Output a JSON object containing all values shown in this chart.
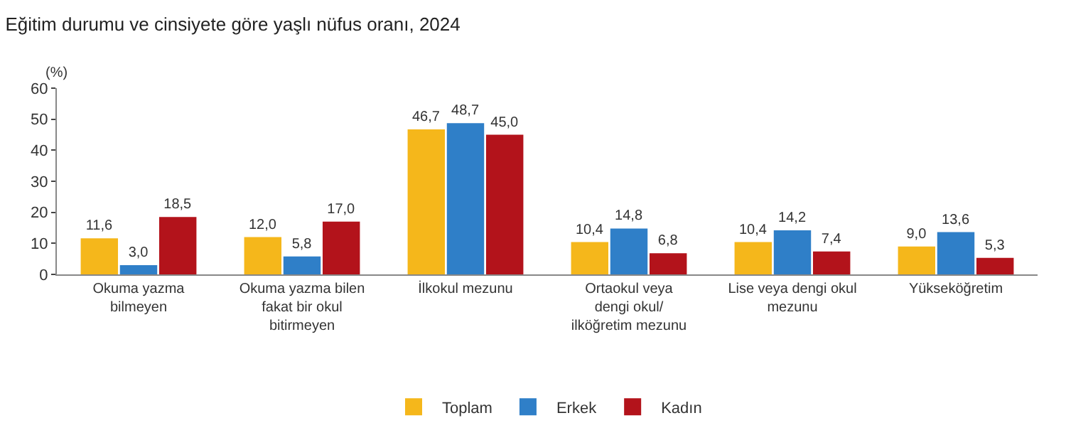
{
  "chart_data": {
    "type": "bar",
    "title": "Eğitim durumu ve cinsiyete göre yaşlı nüfus oranı, 2024",
    "ylabel": "(%)",
    "categories": [
      "Okuma yazma\nbilmeyen",
      "Okuma yazma bilen\nfakat bir okul\nbitirmeyen",
      "İlkokul mezunu",
      "Ortaokul veya\ndengi okul/\nilköğretim mezunu",
      "Lise veya dengi okul\nmezunu",
      "Yükseköğretim"
    ],
    "series": [
      {
        "name": "Toplam",
        "color": "#f5b71b",
        "values": [
          11.6,
          12.0,
          46.7,
          10.4,
          10.4,
          9.0
        ],
        "value_labels": [
          "11,6",
          "12,0",
          "46,7",
          "10,4",
          "10,4",
          "9,0"
        ]
      },
      {
        "name": "Erkek",
        "color": "#2f7fc8",
        "values": [
          3.0,
          5.8,
          48.7,
          14.8,
          14.2,
          13.6
        ],
        "value_labels": [
          "3,0",
          "5,8",
          "48,7",
          "14,8",
          "14,2",
          "13,6"
        ]
      },
      {
        "name": "Kadın",
        "color": "#b3131b",
        "values": [
          18.5,
          17.0,
          45.0,
          6.8,
          7.4,
          5.3
        ],
        "value_labels": [
          "18,5",
          "17,0",
          "45,0",
          "6,8",
          "7,4",
          "5,3"
        ]
      }
    ],
    "ylim": [
      0,
      60
    ],
    "yticks": [
      0,
      10,
      20,
      30,
      40,
      50,
      60
    ],
    "grid": false,
    "legend": "bottom"
  }
}
